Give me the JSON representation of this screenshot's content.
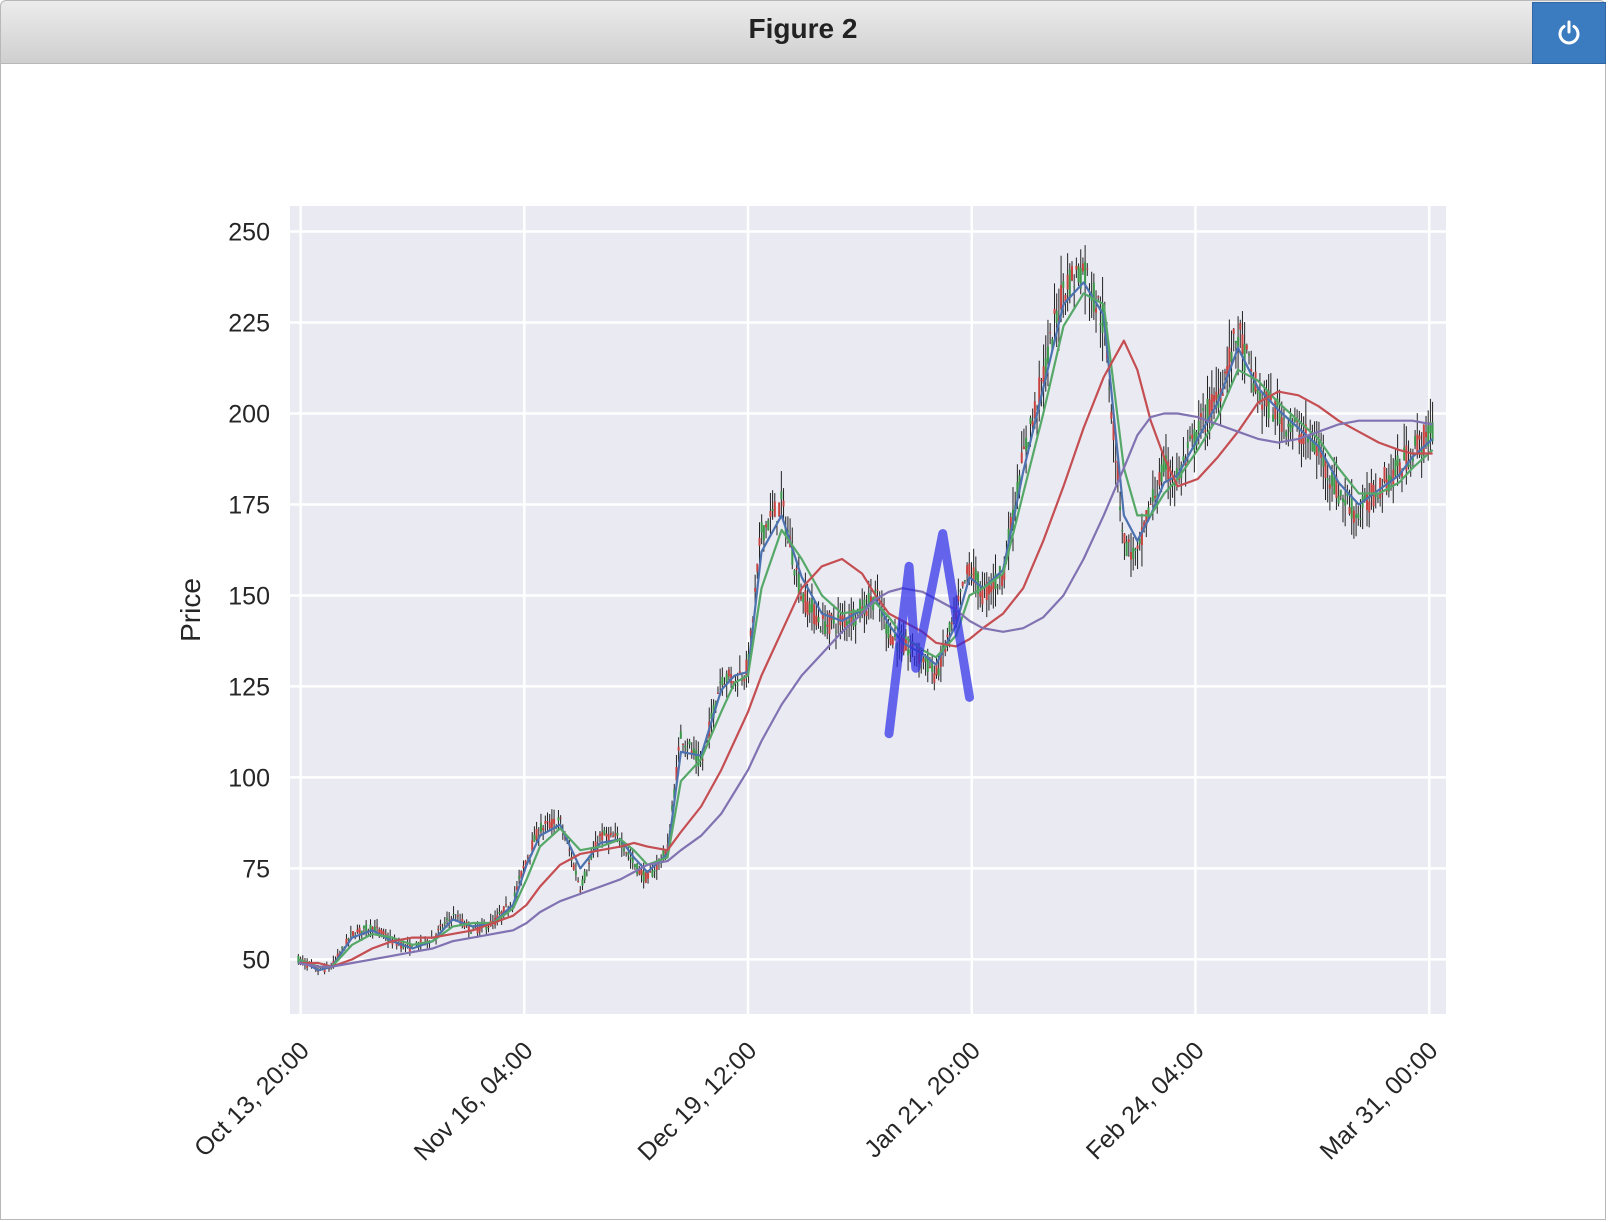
{
  "window": {
    "title": "Figure 2",
    "power_icon": "power-icon"
  },
  "chart_data": {
    "type": "line",
    "subtype": "candlestick-with-moving-averages",
    "title": "",
    "xlabel": "",
    "ylabel": "Price",
    "ylim": [
      35,
      257
    ],
    "xlim": [
      "Oct 12, 06:00",
      "Apr 2, 12:00"
    ],
    "yticks": [
      50,
      75,
      100,
      125,
      150,
      175,
      200,
      225,
      250
    ],
    "xtick_labels": [
      "Oct 13, 20:00",
      "Nov 16, 04:00",
      "Dec 19, 12:00",
      "Jan 21, 20:00",
      "Feb 24, 04:00",
      "Mar 31, 00:00"
    ],
    "xticks": [
      {
        "label": "Oct 13, 20:00",
        "t": "2024-10-13T20:00"
      },
      {
        "label": "Nov 16, 04:00",
        "t": "2024-11-16T04:00"
      },
      {
        "label": "Dec 19, 12:00",
        "t": "2024-12-19T12:00"
      },
      {
        "label": "Jan 21, 20:00",
        "t": "2025-01-21T20:00"
      },
      {
        "label": "Feb 24, 04:00",
        "t": "2025-02-24T04:00"
      },
      {
        "label": "Mar 31, 00:00",
        "t": "2025-03-31T00:00"
      }
    ],
    "grid": true,
    "background": "#eaeaf2",
    "price_series": {
      "name": "",
      "x": [
        "Oct 13",
        "Oct 16",
        "Oct 18",
        "Oct 21",
        "Oct 24",
        "Oct 27",
        "Oct 30",
        "Nov 2",
        "Nov 5",
        "Nov 8",
        "Nov 11",
        "Nov 14",
        "Nov 16",
        "Nov 18",
        "Nov 21",
        "Nov 24",
        "Nov 27",
        "Nov 30",
        "Dec 2",
        "Dec 4",
        "Dec 7",
        "Dec 9",
        "Dec 12",
        "Dec 15",
        "Dec 17",
        "Dec 19",
        "Dec 21",
        "Dec 24",
        "Dec 27",
        "Dec 30",
        "Jan 2",
        "Jan 5",
        "Jan 7",
        "Jan 9",
        "Jan 11",
        "Jan 14",
        "Jan 16",
        "Jan 19",
        "Jan 21",
        "Jan 23",
        "Jan 26",
        "Jan 29",
        "Feb 1",
        "Feb 4",
        "Feb 7",
        "Feb 10",
        "Feb 13",
        "Feb 15",
        "Feb 17",
        "Feb 19",
        "Feb 21",
        "Feb 24",
        "Feb 27",
        "Mar 2",
        "Mar 5",
        "Mar 8",
        "Mar 11",
        "Mar 14",
        "Mar 17",
        "Mar 20",
        "Mar 23",
        "Mar 26",
        "Mar 28",
        "Mar 31"
      ],
      "y": [
        50,
        47,
        48,
        57,
        59,
        55,
        53,
        56,
        62,
        58,
        60,
        66,
        78,
        86,
        88,
        70,
        84,
        83,
        76,
        72,
        80,
        112,
        103,
        128,
        127,
        130,
        168,
        175,
        150,
        142,
        143,
        146,
        150,
        140,
        136,
        133,
        128,
        145,
        158,
        150,
        156,
        188,
        210,
        235,
        240,
        225,
        165,
        160,
        175,
        185,
        182,
        195,
        205,
        222,
        205,
        200,
        195,
        190,
        178,
        172,
        180,
        185,
        190,
        195
      ]
    },
    "series": [
      {
        "name": "",
        "color": "#4c72b0",
        "values": [
          50,
          47,
          48,
          56,
          58,
          55,
          53,
          55,
          61,
          59,
          60,
          65,
          76,
          84,
          87,
          75,
          82,
          83,
          78,
          74,
          79,
          107,
          106,
          124,
          128,
          129,
          162,
          172,
          155,
          145,
          143,
          146,
          149,
          142,
          137,
          134,
          131,
          142,
          155,
          152,
          157,
          184,
          207,
          230,
          236,
          227,
          172,
          165,
          172,
          181,
          183,
          193,
          203,
          218,
          207,
          201,
          196,
          191,
          181,
          175,
          179,
          183,
          188,
          193
        ]
      },
      {
        "name": "",
        "color": "#55a868",
        "values": [
          50,
          48,
          48,
          54,
          57,
          56,
          54,
          55,
          59,
          60,
          60,
          64,
          72,
          81,
          86,
          80,
          81,
          83,
          80,
          76,
          78,
          99,
          105,
          118,
          126,
          128,
          152,
          168,
          160,
          150,
          145,
          146,
          148,
          144,
          139,
          135,
          133,
          139,
          150,
          152,
          156,
          178,
          200,
          224,
          233,
          230,
          185,
          172,
          172,
          178,
          182,
          190,
          199,
          212,
          209,
          203,
          198,
          193,
          185,
          178,
          178,
          181,
          185,
          190
        ]
      },
      {
        "name": "",
        "color": "#c44e52",
        "values": [
          49,
          49,
          48,
          50,
          53,
          55,
          56,
          56,
          57,
          58,
          60,
          62,
          65,
          70,
          76,
          79,
          80,
          81,
          82,
          81,
          80,
          85,
          92,
          102,
          110,
          118,
          128,
          140,
          152,
          158,
          160,
          156,
          150,
          145,
          143,
          140,
          137,
          136,
          138,
          141,
          145,
          152,
          165,
          180,
          196,
          210,
          220,
          212,
          198,
          188,
          180,
          182,
          188,
          195,
          203,
          206,
          205,
          202,
          198,
          195,
          192,
          190,
          189,
          189
        ]
      },
      {
        "name": "",
        "color": "#8172b2",
        "values": [
          49,
          48,
          48,
          49,
          50,
          51,
          52,
          53,
          55,
          56,
          57,
          58,
          60,
          63,
          66,
          68,
          70,
          72,
          74,
          76,
          77,
          80,
          84,
          90,
          96,
          102,
          110,
          120,
          128,
          134,
          140,
          145,
          149,
          151,
          152,
          151,
          149,
          146,
          143,
          141,
          140,
          141,
          144,
          150,
          160,
          172,
          185,
          194,
          199,
          200,
          200,
          199,
          197,
          195,
          193,
          192,
          193,
          195,
          197,
          198,
          198,
          198,
          198,
          197
        ]
      }
    ],
    "pattern_overlay": {
      "color": "#2a2ae8",
      "label": "",
      "points": [
        {
          "t": "Jan 9",
          "y": 112
        },
        {
          "t": "Jan 12",
          "y": 158
        },
        {
          "t": "Jan 13",
          "y": 130
        },
        {
          "t": "Jan 17",
          "y": 167
        },
        {
          "t": "Jan 21",
          "y": 122
        }
      ]
    }
  }
}
